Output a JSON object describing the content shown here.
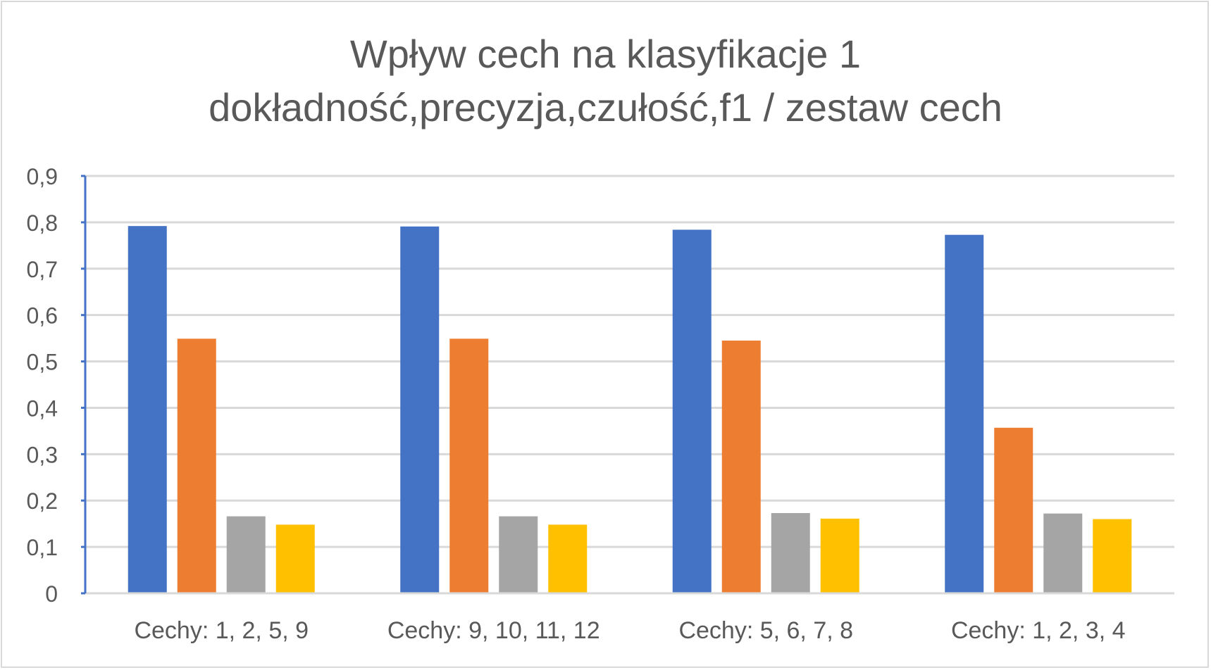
{
  "chart_data": {
    "type": "bar",
    "title": "Wpływ cech na klasyfikacje 1",
    "subtitle": "dokładność,precyzja,czułość,f1 / zestaw cech",
    "xlabel": "",
    "ylabel": "",
    "ylim": [
      0,
      0.9
    ],
    "yticks": [
      "0",
      "0,1",
      "0,2",
      "0,3",
      "0,4",
      "0,5",
      "0,6",
      "0,7",
      "0,8",
      "0,9"
    ],
    "grid": true,
    "legend": "none",
    "categories": [
      "Cechy: 1, 2, 5, 9",
      "Cechy: 9, 10, 11, 12",
      "Cechy: 5, 6, 7, 8",
      "Cechy: 1, 2, 3, 4"
    ],
    "series": [
      {
        "color": "#4472c4",
        "values": [
          0.792,
          0.791,
          0.784,
          0.773
        ]
      },
      {
        "color": "#ed7d31",
        "values": [
          0.549,
          0.549,
          0.545,
          0.357
        ]
      },
      {
        "color": "#a5a5a5",
        "values": [
          0.166,
          0.166,
          0.173,
          0.172
        ]
      },
      {
        "color": "#ffc000",
        "values": [
          0.148,
          0.148,
          0.161,
          0.16
        ]
      }
    ]
  }
}
